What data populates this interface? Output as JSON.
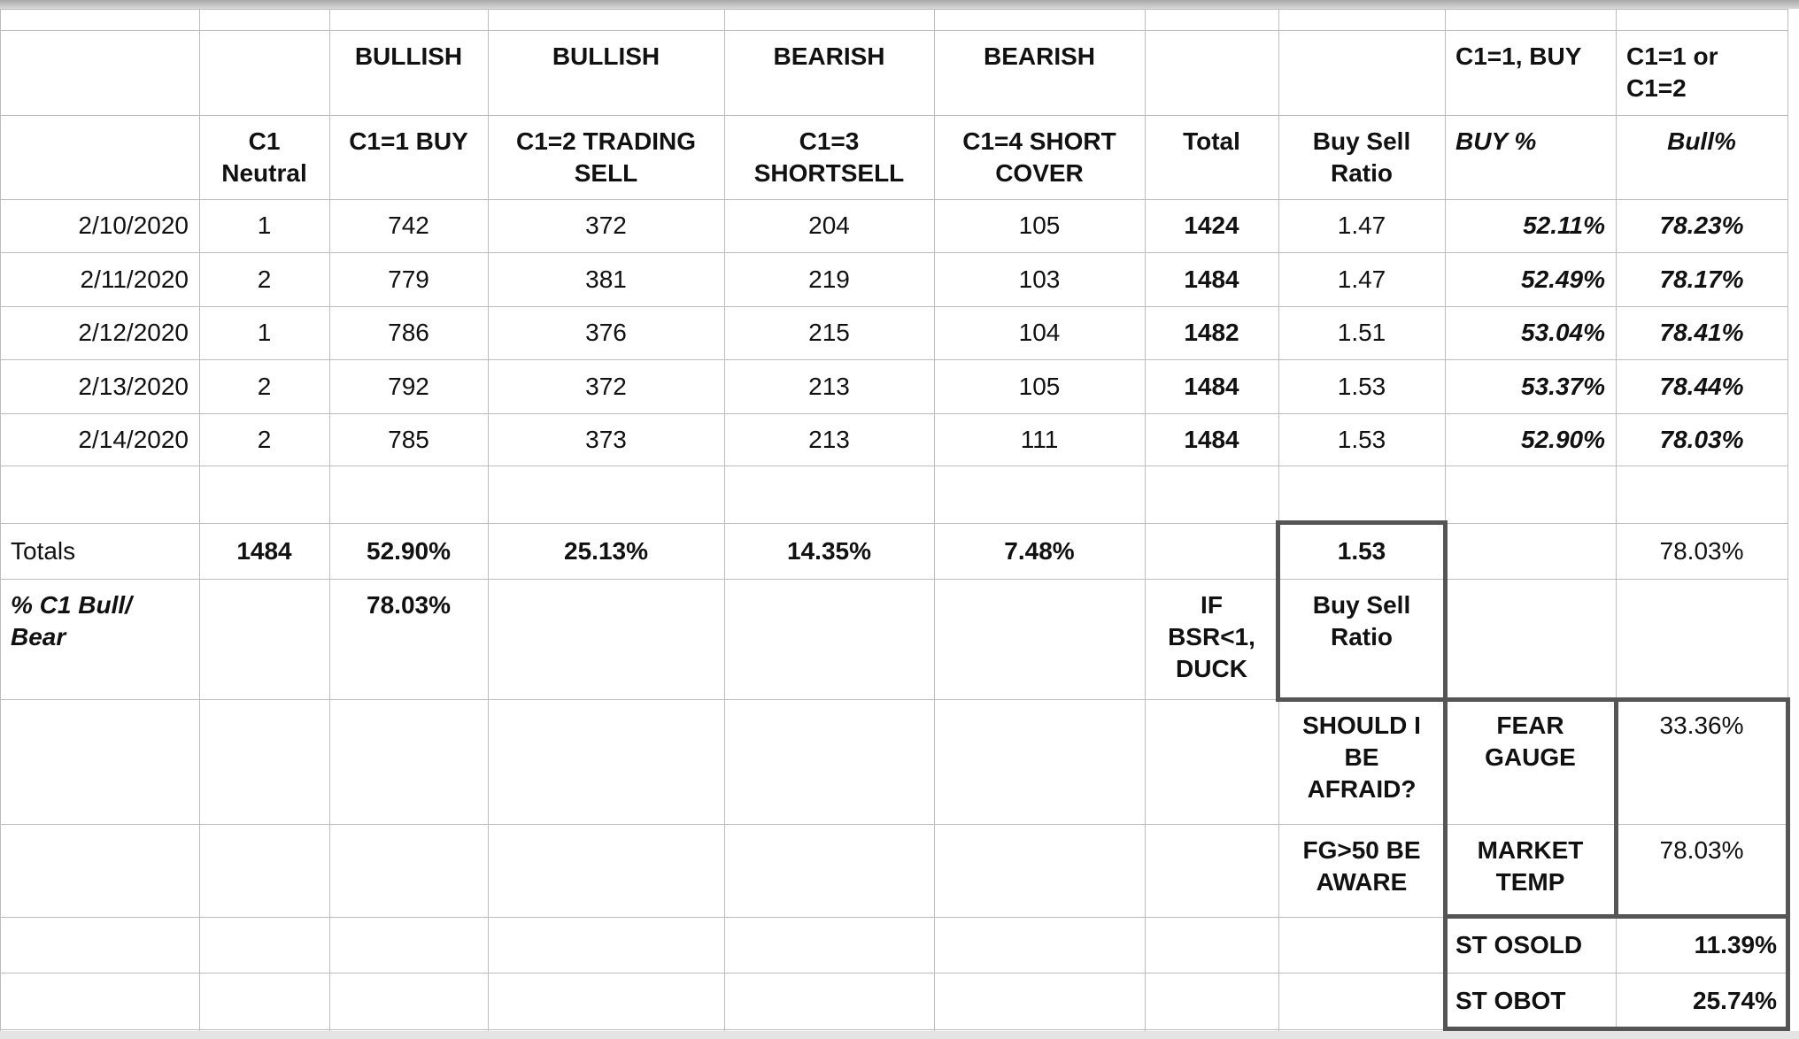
{
  "table": {
    "rows": [
      [
        null,
        null,
        "BULLISH",
        "BULLISH",
        "BEARISH",
        "BEARISH",
        null,
        null,
        "C1=1, BUY",
        "C1=1 or C1=2"
      ],
      [
        null,
        "C1 Neutral",
        "C1=1 BUY",
        "C1=2 TRADING SELL",
        "C1=3 SHORTSELL",
        "C1=4 SHORT COVER",
        "Total",
        "Buy Sell Ratio",
        "BUY %",
        "Bull%"
      ],
      [
        "2/10/2020",
        "1",
        "742",
        "372",
        "204",
        "105",
        "1424",
        "1.47",
        "52.11%",
        "78.23%"
      ],
      [
        "2/11/2020",
        "2",
        "779",
        "381",
        "219",
        "103",
        "1484",
        "1.47",
        "52.49%",
        "78.17%"
      ],
      [
        "2/12/2020",
        "1",
        "786",
        "376",
        "215",
        "104",
        "1482",
        "1.51",
        "53.04%",
        "78.41%"
      ],
      [
        "2/13/2020",
        "2",
        "792",
        "372",
        "213",
        "105",
        "1484",
        "1.53",
        "53.37%",
        "78.44%"
      ],
      [
        "2/14/2020",
        "2",
        "785",
        "373",
        "213",
        "111",
        "1484",
        "1.53",
        "52.90%",
        "78.03%"
      ],
      [
        null,
        null,
        null,
        null,
        null,
        null,
        null,
        null,
        null,
        null
      ],
      [
        "Totals",
        "1484",
        "52.90%",
        "25.13%",
        "14.35%",
        "7.48%",
        null,
        "1.53",
        null,
        "78.03%"
      ],
      [
        "% C1 Bull/ Bear",
        null,
        "78.03%",
        null,
        null,
        null,
        "IF BSR<1, DUCK",
        "Buy Sell Ratio",
        null,
        null
      ],
      [
        null,
        null,
        null,
        null,
        null,
        null,
        null,
        "SHOULD I BE AFRAID?",
        "FEAR GAUGE",
        "33.36%"
      ],
      [
        null,
        null,
        null,
        null,
        null,
        null,
        null,
        "FG>50 BE AWARE",
        "MARKET TEMP",
        "78.03%"
      ],
      [
        null,
        null,
        null,
        null,
        null,
        null,
        null,
        null,
        "ST OSOLD",
        "11.39%"
      ],
      [
        null,
        null,
        null,
        null,
        null,
        null,
        null,
        null,
        "ST OBOT",
        "25.74%"
      ]
    ]
  }
}
